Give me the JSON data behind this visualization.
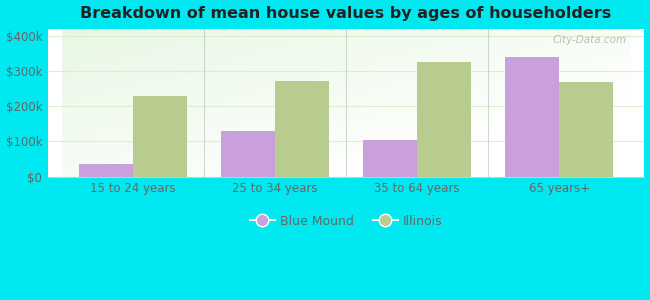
{
  "title": "Breakdown of mean house values by ages of householders",
  "categories": [
    "15 to 24 years",
    "25 to 34 years",
    "35 to 64 years",
    "65 years+"
  ],
  "blue_mound_values": [
    35000,
    130000,
    105000,
    340000
  ],
  "illinois_values": [
    228000,
    272000,
    325000,
    270000
  ],
  "bar_color_blue_mound": "#c9a0dc",
  "bar_color_illinois": "#b8cc90",
  "ylim": [
    0,
    420000
  ],
  "yticks": [
    0,
    100000,
    200000,
    300000,
    400000
  ],
  "ytick_labels": [
    "$0",
    "$100k",
    "$200k",
    "$300k",
    "$400k"
  ],
  "background_color": "#00e8f0",
  "title_fontsize": 11.5,
  "legend_labels": [
    "Blue Mound",
    "Illinois"
  ],
  "bar_width": 0.38,
  "watermark": "City-Data.com",
  "separator_color": "#bbccbb",
  "grid_color": "#ddeecc",
  "tick_label_color": "#666666",
  "spine_color": "#cccccc"
}
